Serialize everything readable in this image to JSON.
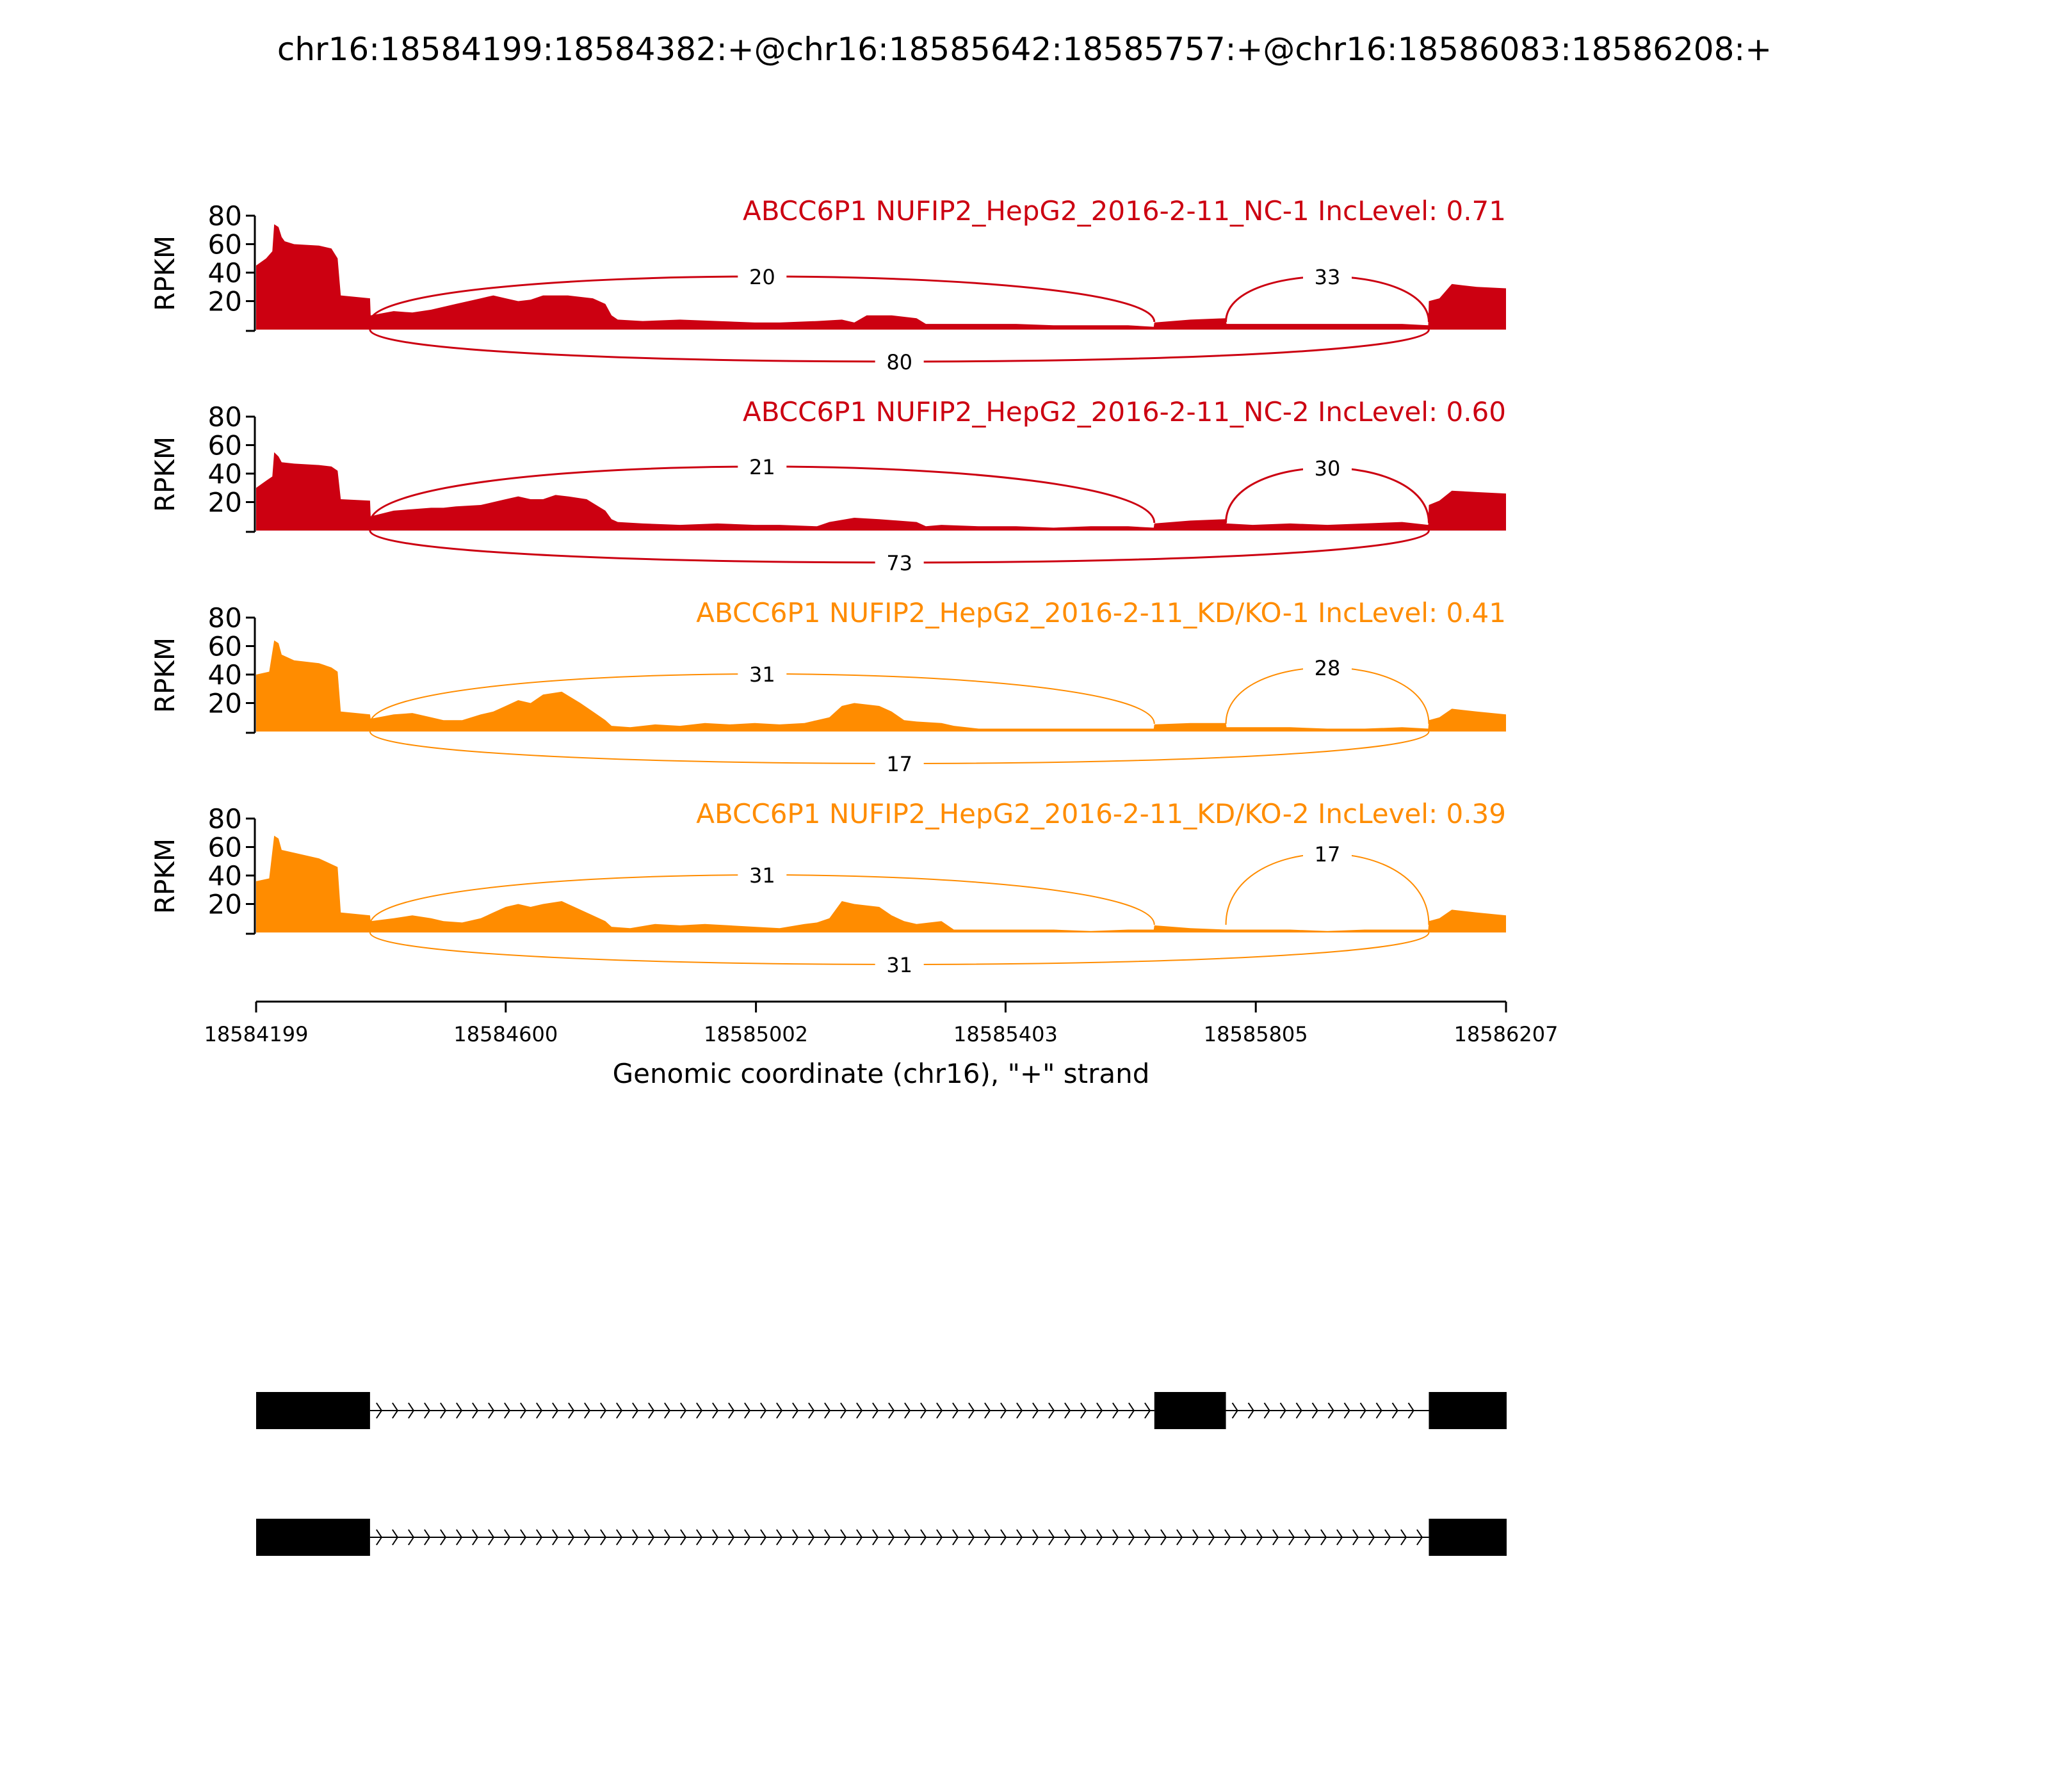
{
  "title": "chr16:18584199:18584382:+@chr16:18585642:18585757:+@chr16:18586083:18586208:+",
  "colors": {
    "nc": "#cc0011",
    "kd": "#ff8c00",
    "axis": "#000000",
    "exon": "#000000"
  },
  "chart_data": {
    "type": "area",
    "title": "chr16:18584199:18584382:+@chr16:18585642:18585757:+@chr16:18586083:18586208:+",
    "xlabel": "Genomic coordinate (chr16), \"+\" strand",
    "ylabel": "RPKM",
    "xlim": [
      18584199,
      18586207
    ],
    "x_ticks": [
      "18584199",
      "18584600",
      "18585002",
      "18585403",
      "18585805",
      "18586207"
    ],
    "y_ticks": [
      "80",
      "60",
      "40",
      "20"
    ],
    "ylim": [
      0,
      80
    ],
    "exons": [
      {
        "start": 18584199,
        "end": 18584382
      },
      {
        "start": 18585642,
        "end": 18585757
      },
      {
        "start": 18586083,
        "end": 18586208
      }
    ],
    "transcripts": [
      {
        "exons": [
          0,
          1,
          2
        ]
      },
      {
        "exons": [
          0,
          2
        ]
      }
    ],
    "series": [
      {
        "name": "ABCC6P1 NUFIP2_HepG2_2016-2-11_NC-1 IncLevel: 0.71",
        "group": "nc",
        "junctions": {
          "inc_left": "20",
          "inc_right": "33",
          "skip": "80"
        },
        "coverage": [
          [
            18584199,
            45
          ],
          [
            18584215,
            50
          ],
          [
            18584225,
            55
          ],
          [
            18584228,
            74
          ],
          [
            18584235,
            72
          ],
          [
            18584240,
            65
          ],
          [
            18584245,
            62
          ],
          [
            18584260,
            60
          ],
          [
            18584300,
            59
          ],
          [
            18584320,
            57
          ],
          [
            18584330,
            50
          ],
          [
            18584335,
            24
          ],
          [
            18584382,
            22
          ],
          [
            18584383,
            10
          ],
          [
            18584420,
            13
          ],
          [
            18584450,
            12
          ],
          [
            18584480,
            14
          ],
          [
            18584500,
            16
          ],
          [
            18584520,
            18
          ],
          [
            18584540,
            20
          ],
          [
            18584560,
            22
          ],
          [
            18584580,
            24
          ],
          [
            18584600,
            22
          ],
          [
            18584620,
            20
          ],
          [
            18584640,
            21
          ],
          [
            18584660,
            24
          ],
          [
            18584700,
            24
          ],
          [
            18584740,
            22
          ],
          [
            18584760,
            18
          ],
          [
            18584770,
            10
          ],
          [
            18584780,
            7
          ],
          [
            18584820,
            6
          ],
          [
            18584880,
            7
          ],
          [
            18584940,
            6
          ],
          [
            18585000,
            5
          ],
          [
            18585040,
            5
          ],
          [
            18585100,
            6
          ],
          [
            18585140,
            7
          ],
          [
            18585160,
            5
          ],
          [
            18585180,
            10
          ],
          [
            18585220,
            10
          ],
          [
            18585260,
            8
          ],
          [
            18585275,
            4
          ],
          [
            18585300,
            4
          ],
          [
            18585360,
            4
          ],
          [
            18585420,
            4
          ],
          [
            18585480,
            3
          ],
          [
            18585540,
            3
          ],
          [
            18585600,
            3
          ],
          [
            18585641,
            2
          ],
          [
            18585642,
            5
          ],
          [
            18585700,
            7
          ],
          [
            18585757,
            8
          ],
          [
            18585758,
            4
          ],
          [
            18585800,
            4
          ],
          [
            18585860,
            4
          ],
          [
            18585920,
            4
          ],
          [
            18585980,
            4
          ],
          [
            18586040,
            4
          ],
          [
            18586082,
            3
          ],
          [
            18586083,
            20
          ],
          [
            18586100,
            22
          ],
          [
            18586120,
            32
          ],
          [
            18586160,
            30
          ],
          [
            18586207,
            29
          ]
        ]
      },
      {
        "name": "ABCC6P1 NUFIP2_HepG2_2016-2-11_NC-2 IncLevel: 0.60",
        "group": "nc",
        "junctions": {
          "inc_left": "21",
          "inc_right": "30",
          "skip": "73"
        },
        "coverage": [
          [
            18584199,
            30
          ],
          [
            18584215,
            35
          ],
          [
            18584225,
            38
          ],
          [
            18584228,
            55
          ],
          [
            18584235,
            52
          ],
          [
            18584240,
            48
          ],
          [
            18584260,
            47
          ],
          [
            18584300,
            46
          ],
          [
            18584320,
            45
          ],
          [
            18584330,
            42
          ],
          [
            18584335,
            22
          ],
          [
            18584382,
            21
          ],
          [
            18584383,
            10
          ],
          [
            18584420,
            14
          ],
          [
            18584450,
            15
          ],
          [
            18584480,
            16
          ],
          [
            18584500,
            16
          ],
          [
            18584520,
            17
          ],
          [
            18584560,
            18
          ],
          [
            18584580,
            20
          ],
          [
            18584600,
            22
          ],
          [
            18584620,
            24
          ],
          [
            18584640,
            22
          ],
          [
            18584660,
            22
          ],
          [
            18584680,
            25
          ],
          [
            18584700,
            24
          ],
          [
            18584730,
            22
          ],
          [
            18584760,
            14
          ],
          [
            18584770,
            8
          ],
          [
            18584780,
            6
          ],
          [
            18584820,
            5
          ],
          [
            18584880,
            4
          ],
          [
            18584940,
            5
          ],
          [
            18585000,
            4
          ],
          [
            18585040,
            4
          ],
          [
            18585100,
            3
          ],
          [
            18585120,
            6
          ],
          [
            18585160,
            9
          ],
          [
            18585200,
            8
          ],
          [
            18585260,
            6
          ],
          [
            18585275,
            3
          ],
          [
            18585300,
            4
          ],
          [
            18585360,
            3
          ],
          [
            18585420,
            3
          ],
          [
            18585480,
            2
          ],
          [
            18585540,
            3
          ],
          [
            18585600,
            3
          ],
          [
            18585641,
            2
          ],
          [
            18585642,
            5
          ],
          [
            18585700,
            7
          ],
          [
            18585757,
            8
          ],
          [
            18585758,
            5
          ],
          [
            18585800,
            4
          ],
          [
            18585860,
            5
          ],
          [
            18585920,
            4
          ],
          [
            18585980,
            5
          ],
          [
            18586040,
            6
          ],
          [
            18586082,
            4
          ],
          [
            18586083,
            18
          ],
          [
            18586100,
            21
          ],
          [
            18586120,
            28
          ],
          [
            18586160,
            27
          ],
          [
            18586207,
            26
          ]
        ]
      },
      {
        "name": "ABCC6P1 NUFIP2_HepG2_2016-2-11_KD/KO-1 IncLevel: 0.41",
        "group": "kd",
        "junctions": {
          "inc_left": "31",
          "inc_right": "28",
          "skip": "17"
        },
        "coverage": [
          [
            18584199,
            40
          ],
          [
            18584220,
            42
          ],
          [
            18584228,
            64
          ],
          [
            18584235,
            62
          ],
          [
            18584240,
            54
          ],
          [
            18584260,
            50
          ],
          [
            18584300,
            48
          ],
          [
            18584320,
            45
          ],
          [
            18584330,
            42
          ],
          [
            18584335,
            14
          ],
          [
            18584382,
            12
          ],
          [
            18584383,
            9
          ],
          [
            18584420,
            12
          ],
          [
            18584450,
            13
          ],
          [
            18584480,
            10
          ],
          [
            18584500,
            8
          ],
          [
            18584530,
            8
          ],
          [
            18584560,
            12
          ],
          [
            18584580,
            14
          ],
          [
            18584600,
            18
          ],
          [
            18584620,
            22
          ],
          [
            18584640,
            20
          ],
          [
            18584660,
            26
          ],
          [
            18584690,
            28
          ],
          [
            18584720,
            20
          ],
          [
            18584740,
            14
          ],
          [
            18584760,
            8
          ],
          [
            18584770,
            4
          ],
          [
            18584800,
            3
          ],
          [
            18584840,
            5
          ],
          [
            18584880,
            4
          ],
          [
            18584920,
            6
          ],
          [
            18584960,
            5
          ],
          [
            18585000,
            6
          ],
          [
            18585040,
            5
          ],
          [
            18585080,
            6
          ],
          [
            18585100,
            8
          ],
          [
            18585120,
            10
          ],
          [
            18585140,
            18
          ],
          [
            18585160,
            20
          ],
          [
            18585200,
            18
          ],
          [
            18585220,
            14
          ],
          [
            18585240,
            8
          ],
          [
            18585260,
            7
          ],
          [
            18585300,
            6
          ],
          [
            18585320,
            4
          ],
          [
            18585360,
            2
          ],
          [
            18585420,
            2
          ],
          [
            18585480,
            2
          ],
          [
            18585540,
            2
          ],
          [
            18585600,
            2
          ],
          [
            18585641,
            2
          ],
          [
            18585642,
            5
          ],
          [
            18585700,
            6
          ],
          [
            18585757,
            6
          ],
          [
            18585758,
            3
          ],
          [
            18585800,
            3
          ],
          [
            18585860,
            3
          ],
          [
            18585920,
            2
          ],
          [
            18585980,
            2
          ],
          [
            18586040,
            3
          ],
          [
            18586082,
            2
          ],
          [
            18586083,
            8
          ],
          [
            18586100,
            10
          ],
          [
            18586120,
            16
          ],
          [
            18586160,
            14
          ],
          [
            18586207,
            12
          ]
        ]
      },
      {
        "name": "ABCC6P1 NUFIP2_HepG2_2016-2-11_KD/KO-2 IncLevel: 0.39",
        "group": "kd",
        "junctions": {
          "inc_left": "31",
          "inc_right": "17",
          "skip": "31"
        },
        "coverage": [
          [
            18584199,
            36
          ],
          [
            18584220,
            38
          ],
          [
            18584228,
            68
          ],
          [
            18584235,
            66
          ],
          [
            18584240,
            58
          ],
          [
            18584260,
            56
          ],
          [
            18584300,
            52
          ],
          [
            18584320,
            48
          ],
          [
            18584330,
            46
          ],
          [
            18584335,
            14
          ],
          [
            18584382,
            12
          ],
          [
            18584383,
            8
          ],
          [
            18584420,
            10
          ],
          [
            18584450,
            12
          ],
          [
            18584480,
            10
          ],
          [
            18584500,
            8
          ],
          [
            18584530,
            7
          ],
          [
            18584560,
            10
          ],
          [
            18584580,
            14
          ],
          [
            18584600,
            18
          ],
          [
            18584620,
            20
          ],
          [
            18584640,
            18
          ],
          [
            18584660,
            20
          ],
          [
            18584690,
            22
          ],
          [
            18584720,
            16
          ],
          [
            18584740,
            12
          ],
          [
            18584760,
            8
          ],
          [
            18584770,
            4
          ],
          [
            18584800,
            3
          ],
          [
            18584840,
            6
          ],
          [
            18584880,
            5
          ],
          [
            18584920,
            6
          ],
          [
            18584960,
            5
          ],
          [
            18585000,
            4
          ],
          [
            18585040,
            3
          ],
          [
            18585080,
            6
          ],
          [
            18585100,
            7
          ],
          [
            18585120,
            10
          ],
          [
            18585140,
            22
          ],
          [
            18585160,
            20
          ],
          [
            18585200,
            18
          ],
          [
            18585220,
            12
          ],
          [
            18585240,
            8
          ],
          [
            18585260,
            6
          ],
          [
            18585300,
            8
          ],
          [
            18585320,
            2
          ],
          [
            18585360,
            2
          ],
          [
            18585420,
            2
          ],
          [
            18585480,
            2
          ],
          [
            18585540,
            1
          ],
          [
            18585600,
            2
          ],
          [
            18585641,
            2
          ],
          [
            18585642,
            5
          ],
          [
            18585700,
            3
          ],
          [
            18585757,
            2
          ],
          [
            18585758,
            2
          ],
          [
            18585800,
            2
          ],
          [
            18585860,
            2
          ],
          [
            18585920,
            1
          ],
          [
            18585980,
            2
          ],
          [
            18586040,
            2
          ],
          [
            18586082,
            2
          ],
          [
            18586083,
            8
          ],
          [
            18586100,
            10
          ],
          [
            18586120,
            16
          ],
          [
            18586160,
            14
          ],
          [
            18586207,
            12
          ]
        ]
      }
    ]
  }
}
